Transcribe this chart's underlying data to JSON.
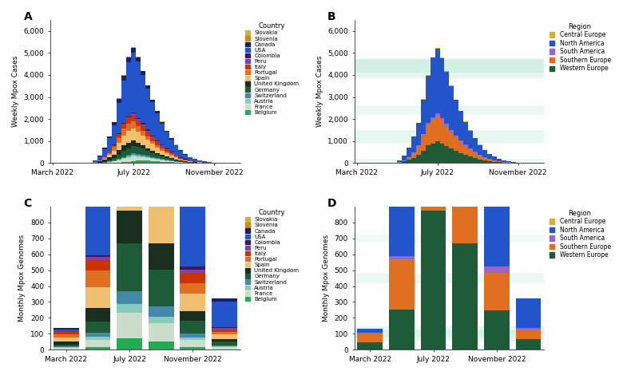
{
  "country_colors": {
    "Slovakia": "#d4b040",
    "Slovenia": "#c89010",
    "Canada": "#1c2060",
    "USA": "#2255cc",
    "Colombia": "#3a1a5a",
    "Peru": "#7744bb",
    "Italy": "#cc3300",
    "Portugal": "#e07020",
    "Spain": "#f0c070",
    "United Kingdom": "#1a2e20",
    "Germany": "#1e5c38",
    "Switzerland": "#4488aa",
    "Austria": "#88ccbb",
    "France": "#ccddcc",
    "Belgium": "#22aa55"
  },
  "region_colors": {
    "Central Europe": "#d4b040",
    "North America": "#2255cc",
    "South America": "#9966cc",
    "Southern Europe": "#e07020",
    "Western Europe": "#1e5c38"
  },
  "n_weeks": 40,
  "weekly_data_countries": {
    "Belgium": [
      0,
      0,
      0,
      0,
      0,
      0,
      0,
      0,
      0,
      0,
      4,
      8,
      15,
      25,
      35,
      50,
      70,
      90,
      110,
      130,
      120,
      105,
      85,
      70,
      55,
      38,
      28,
      18,
      12,
      8,
      5,
      3,
      2,
      1,
      1,
      0,
      0,
      0,
      0,
      0
    ],
    "France": [
      0,
      0,
      0,
      0,
      0,
      0,
      0,
      0,
      0,
      0,
      8,
      18,
      35,
      55,
      90,
      130,
      170,
      210,
      175,
      140,
      110,
      90,
      72,
      57,
      45,
      35,
      26,
      18,
      12,
      8,
      6,
      4,
      2,
      1,
      1,
      0,
      0,
      0,
      0,
      0
    ],
    "Austria": [
      0,
      0,
      0,
      0,
      0,
      0,
      0,
      0,
      0,
      0,
      4,
      8,
      16,
      26,
      36,
      46,
      54,
      62,
      54,
      46,
      40,
      35,
      30,
      25,
      21,
      16,
      12,
      8,
      6,
      4,
      2,
      1,
      1,
      0,
      0,
      0,
      0,
      0,
      0,
      0
    ],
    "Switzerland": [
      0,
      0,
      0,
      0,
      0,
      0,
      0,
      0,
      0,
      0,
      4,
      8,
      16,
      26,
      44,
      60,
      78,
      90,
      80,
      70,
      62,
      52,
      44,
      35,
      30,
      24,
      17,
      12,
      8,
      6,
      4,
      2,
      1,
      1,
      0,
      0,
      0,
      0,
      0,
      0
    ],
    "Germany": [
      0,
      0,
      0,
      0,
      0,
      0,
      0,
      0,
      0,
      4,
      12,
      26,
      44,
      88,
      175,
      265,
      310,
      340,
      308,
      265,
      220,
      176,
      150,
      123,
      97,
      70,
      52,
      35,
      26,
      17,
      13,
      8,
      7,
      4,
      2,
      1,
      1,
      0,
      0,
      0
    ],
    "United Kingdom": [
      0,
      0,
      0,
      0,
      0,
      0,
      0,
      0,
      4,
      18,
      44,
      88,
      132,
      176,
      220,
      264,
      246,
      228,
      193,
      158,
      132,
      105,
      88,
      70,
      52,
      44,
      35,
      26,
      17,
      13,
      8,
      7,
      4,
      2,
      1,
      1,
      0,
      0,
      0,
      0
    ],
    "Spain": [
      0,
      0,
      0,
      0,
      0,
      0,
      0,
      0,
      0,
      8,
      26,
      52,
      105,
      175,
      306,
      438,
      525,
      570,
      508,
      438,
      368,
      306,
      245,
      192,
      157,
      122,
      87,
      61,
      44,
      30,
      21,
      13,
      8,
      6,
      3,
      2,
      1,
      0,
      0,
      0
    ],
    "Portugal": [
      0,
      0,
      0,
      0,
      0,
      0,
      0,
      0,
      4,
      13,
      26,
      52,
      87,
      157,
      245,
      306,
      333,
      315,
      262,
      218,
      175,
      140,
      114,
      87,
      70,
      52,
      39,
      26,
      17,
      13,
      8,
      6,
      4,
      2,
      1,
      1,
      0,
      0,
      0,
      0
    ],
    "Italy": [
      0,
      0,
      0,
      0,
      0,
      0,
      0,
      0,
      0,
      4,
      13,
      26,
      52,
      87,
      157,
      218,
      262,
      288,
      262,
      227,
      192,
      157,
      131,
      105,
      83,
      65,
      48,
      33,
      24,
      16,
      10,
      7,
      4,
      2,
      1,
      1,
      0,
      0,
      0,
      0
    ],
    "Peru": [
      0,
      0,
      0,
      0,
      0,
      0,
      0,
      0,
      0,
      0,
      0,
      4,
      8,
      13,
      21,
      30,
      43,
      52,
      61,
      65,
      61,
      56,
      48,
      39,
      33,
      26,
      19,
      13,
      8,
      6,
      4,
      2,
      1,
      1,
      0,
      0,
      0,
      0,
      0,
      0
    ],
    "Colombia": [
      0,
      0,
      0,
      0,
      0,
      0,
      0,
      0,
      0,
      0,
      0,
      4,
      8,
      13,
      17,
      26,
      35,
      43,
      48,
      52,
      48,
      43,
      39,
      33,
      26,
      19,
      13,
      8,
      6,
      4,
      2,
      1,
      1,
      0,
      0,
      0,
      0,
      0,
      0,
      0
    ],
    "USA": [
      0,
      0,
      0,
      0,
      0,
      0,
      0,
      4,
      17,
      70,
      175,
      350,
      612,
      875,
      1400,
      1925,
      2450,
      2712,
      2537,
      2187,
      1837,
      1487,
      1225,
      962,
      744,
      569,
      420,
      298,
      210,
      149,
      105,
      70,
      48,
      30,
      19,
      12,
      7,
      4,
      2,
      1
    ],
    "Canada": [
      0,
      0,
      0,
      0,
      0,
      0,
      0,
      0,
      4,
      13,
      26,
      52,
      87,
      131,
      175,
      218,
      236,
      227,
      201,
      175,
      149,
      122,
      96,
      74,
      57,
      44,
      33,
      24,
      17,
      12,
      8,
      6,
      4,
      2,
      1,
      1,
      0,
      0,
      0,
      0
    ],
    "Slovenia": [
      0,
      0,
      0,
      0,
      0,
      0,
      0,
      0,
      0,
      0,
      0,
      2,
      4,
      7,
      10,
      13,
      16,
      17,
      15,
      13,
      10,
      8,
      7,
      5,
      4,
      3,
      2,
      2,
      1,
      1,
      0,
      0,
      0,
      0,
      0,
      0,
      0,
      0,
      0,
      0
    ],
    "Slovakia": [
      0,
      0,
      0,
      0,
      0,
      0,
      0,
      0,
      0,
      0,
      0,
      1,
      3,
      4,
      7,
      8,
      10,
      12,
      10,
      8,
      7,
      6,
      5,
      4,
      3,
      2,
      2,
      1,
      1,
      0,
      0,
      0,
      0,
      0,
      0,
      0,
      0,
      0,
      0,
      0
    ]
  },
  "weekly_data_regions": {
    "Central Europe": [
      0,
      0,
      0,
      0,
      0,
      0,
      0,
      0,
      0,
      0,
      0,
      3,
      7,
      11,
      17,
      21,
      26,
      29,
      25,
      21,
      17,
      14,
      12,
      9,
      7,
      5,
      4,
      3,
      2,
      1,
      0,
      0,
      0,
      0,
      0,
      0,
      0,
      0,
      0,
      0
    ],
    "North America": [
      0,
      0,
      0,
      0,
      0,
      0,
      0,
      4,
      21,
      83,
      201,
      402,
      699,
      1006,
      1575,
      2143,
      2686,
      2939,
      2738,
      2362,
      1986,
      1609,
      1321,
      1036,
      801,
      613,
      453,
      322,
      227,
      161,
      113,
      76,
      52,
      32,
      20,
      13,
      7,
      4,
      2,
      1
    ],
    "South America": [
      0,
      0,
      0,
      0,
      0,
      0,
      0,
      0,
      0,
      0,
      0,
      8,
      16,
      26,
      38,
      56,
      78,
      95,
      109,
      117,
      109,
      99,
      87,
      72,
      59,
      45,
      32,
      21,
      14,
      10,
      6,
      3,
      2,
      1,
      0,
      0,
      0,
      0,
      0,
      0
    ],
    "Southern Europe": [
      0,
      0,
      0,
      0,
      0,
      0,
      0,
      0,
      4,
      25,
      65,
      130,
      244,
      419,
      708,
      962,
      1120,
      1173,
      1032,
      883,
      735,
      603,
      490,
      384,
      310,
      239,
      174,
      120,
      85,
      59,
      39,
      26,
      17,
      10,
      5,
      4,
      1,
      0,
      0,
      0
    ],
    "Western Europe": [
      0,
      0,
      0,
      0,
      0,
      0,
      0,
      0,
      4,
      22,
      72,
      148,
      243,
      370,
      570,
      805,
      898,
      990,
      892,
      779,
      664,
      562,
      469,
      380,
      306,
      238,
      170,
      121,
      85,
      59,
      43,
      29,
      21,
      13,
      9,
      6,
      4,
      2,
      1,
      0
    ]
  },
  "monthly_data_countries": {
    "Belgium": [
      0,
      0,
      4,
      18,
      72,
      52,
      18,
      4,
      0
    ],
    "France": [
      0,
      0,
      9,
      44,
      162,
      116,
      44,
      13,
      2
    ],
    "Austria": [
      0,
      0,
      4,
      18,
      54,
      40,
      16,
      4,
      1
    ],
    "Switzerland": [
      0,
      0,
      4,
      26,
      81,
      62,
      22,
      7,
      1
    ],
    "Germany": [
      0,
      0,
      13,
      70,
      297,
      234,
      81,
      22,
      3
    ],
    "United Kingdom": [
      0,
      0,
      18,
      88,
      207,
      162,
      63,
      18,
      2
    ],
    "Spain": [
      0,
      0,
      27,
      131,
      522,
      360,
      108,
      27,
      4
    ],
    "Portugal": [
      0,
      0,
      18,
      105,
      288,
      198,
      67,
      18,
      2
    ],
    "Italy": [
      0,
      0,
      13,
      70,
      252,
      180,
      63,
      16,
      2
    ],
    "Peru": [
      0,
      0,
      0,
      13,
      54,
      54,
      22,
      7,
      1
    ],
    "Colombia": [
      0,
      0,
      0,
      9,
      45,
      45,
      18,
      5,
      1
    ],
    "USA": [
      0,
      0,
      18,
      360,
      2520,
      1980,
      630,
      162,
      22
    ],
    "Canada": [
      0,
      0,
      9,
      88,
      216,
      180,
      72,
      20,
      2
    ],
    "Slovenia": [
      0,
      0,
      0,
      4,
      16,
      13,
      4,
      1,
      0
    ],
    "Slovakia": [
      0,
      0,
      0,
      3,
      11,
      9,
      3,
      1,
      0
    ]
  },
  "monthly_data_regions": {
    "Central Europe": [
      0,
      0,
      0,
      7,
      27,
      22,
      7,
      2,
      0
    ],
    "North America": [
      0,
      0,
      27,
      448,
      2736,
      2160,
      702,
      182,
      24
    ],
    "South America": [
      0,
      0,
      0,
      22,
      99,
      99,
      40,
      12,
      2
    ],
    "Southern Europe": [
      0,
      0,
      58,
      314,
      1062,
      738,
      238,
      61,
      8
    ],
    "Western Europe": [
      0,
      0,
      49,
      252,
      873,
      670,
      246,
      66,
      11
    ]
  },
  "monthly_display_indices": [
    2,
    3,
    4,
    5,
    6,
    7
  ],
  "monthly_bar_positions": [
    0,
    1,
    2,
    3,
    4,
    5
  ]
}
